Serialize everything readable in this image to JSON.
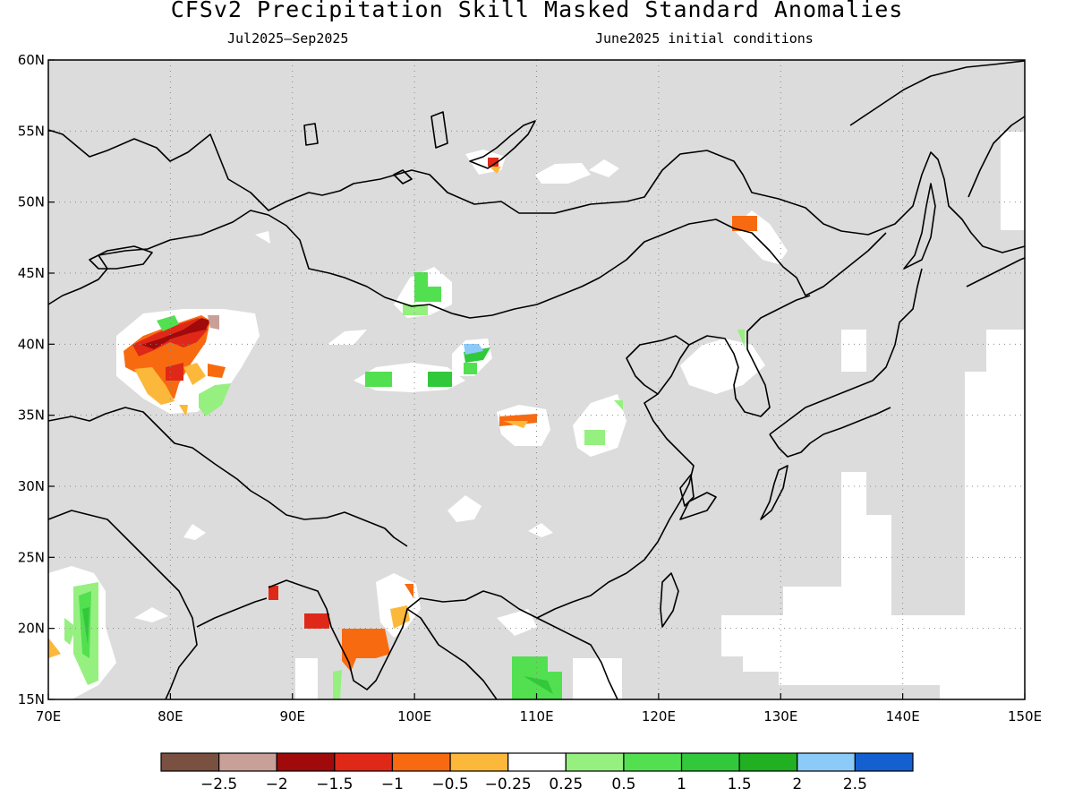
{
  "title": "CFSv2 Precipitation Skill Masked Standard Anomalies",
  "subtitle_left": "Jul2025–Sep2025",
  "subtitle_right": "June2025 initial conditions",
  "map": {
    "lon_range": [
      70,
      150
    ],
    "lat_range": [
      15,
      60
    ],
    "lat_labels": [
      "15N",
      "20N",
      "25N",
      "30N",
      "35N",
      "40N",
      "45N",
      "50N",
      "55N",
      "60N"
    ],
    "lon_labels": [
      "70E",
      "80E",
      "90E",
      "100E",
      "110E",
      "120E",
      "130E",
      "140E",
      "150E"
    ],
    "masked_color": "#dcdcdc",
    "coast_color": "#000000"
  },
  "colorbar": {
    "colors": [
      "#7a5040",
      "#c8a098",
      "#a00a0a",
      "#e02818",
      "#f86a10",
      "#fcb83a",
      "#ffffff",
      "#96f080",
      "#52e050",
      "#32c83c",
      "#20b022",
      "#8ccaf8",
      "#1460d0"
    ],
    "labels": [
      "−2.5",
      "−2",
      "−1.5",
      "−1",
      "−0.5",
      "−0.25",
      "0.25",
      "0.5",
      "1",
      "1.5",
      "2",
      "2.5"
    ]
  }
}
